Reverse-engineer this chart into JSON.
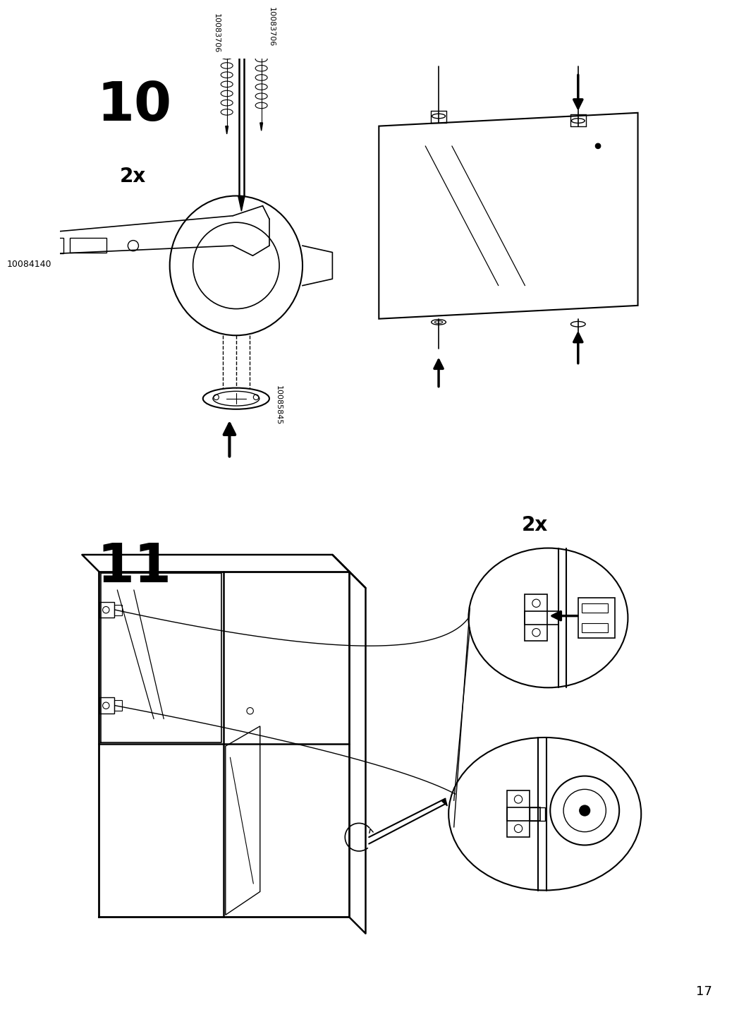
{
  "page_number": "17",
  "step10_label": "10",
  "step11_label": "11",
  "part_hinge_arm": "10084140",
  "part_screw1": "10083706",
  "part_screw2": "10083706",
  "part_cup": "10085845",
  "repeat_2x_10": "2x",
  "repeat_2x_11": "2x",
  "bg_color": "#ffffff",
  "line_color": "#000000"
}
